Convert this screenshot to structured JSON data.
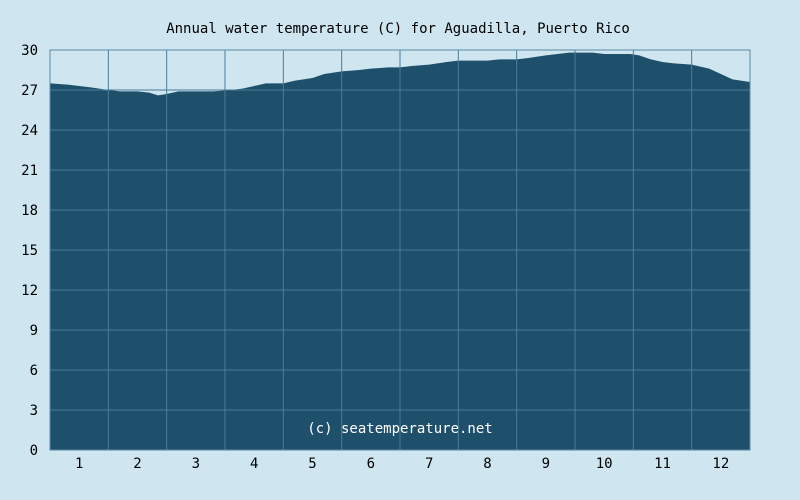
{
  "chart_data": {
    "type": "area",
    "title": "Annual water temperature (C) for Aguadilla, Puerto Rico",
    "xlabel": "",
    "ylabel": "",
    "xlim": [
      0.5,
      12.5
    ],
    "ylim": [
      0,
      30
    ],
    "x_ticks": [
      1,
      2,
      3,
      4,
      5,
      6,
      7,
      8,
      9,
      10,
      11,
      12
    ],
    "y_ticks": [
      0,
      3,
      6,
      9,
      12,
      15,
      18,
      21,
      24,
      27,
      30
    ],
    "grid": true,
    "legend": "none",
    "watermark": "(c) seatemperature.net",
    "colors": {
      "fill": "#1e4f6b",
      "grid": "#4a7d98",
      "page_background": "#cfe5f0",
      "plot_background": "#cfe5f0",
      "border": "#5a8aa3"
    },
    "series": [
      {
        "x": [
          0.5,
          0.8,
          1.0,
          1.2,
          1.5,
          1.7,
          2.0,
          2.2,
          2.35,
          2.5,
          2.7,
          3.0,
          3.3,
          3.6,
          3.8,
          4.0,
          4.2,
          4.5,
          4.7,
          5.0,
          5.2,
          5.5,
          5.8,
          6.0,
          6.3,
          6.5,
          6.7,
          7.0,
          7.3,
          7.5,
          7.8,
          8.0,
          8.2,
          8.5,
          8.7,
          9.0,
          9.2,
          9.4,
          9.6,
          9.8,
          10.0,
          10.2,
          10.45,
          10.6,
          10.8,
          11.0,
          11.2,
          11.5,
          11.8,
          12.0,
          12.2,
          12.5
        ],
        "y": [
          27.5,
          27.4,
          27.3,
          27.2,
          27.0,
          26.9,
          26.9,
          26.8,
          26.6,
          26.7,
          26.9,
          26.9,
          26.9,
          27.0,
          27.1,
          27.3,
          27.5,
          27.5,
          27.7,
          27.9,
          28.2,
          28.4,
          28.5,
          28.6,
          28.7,
          28.7,
          28.8,
          28.9,
          29.1,
          29.2,
          29.2,
          29.2,
          29.3,
          29.3,
          29.4,
          29.6,
          29.7,
          29.8,
          29.8,
          29.8,
          29.7,
          29.7,
          29.7,
          29.6,
          29.3,
          29.1,
          29.0,
          28.9,
          28.6,
          28.2,
          27.8,
          27.6
        ]
      }
    ]
  }
}
